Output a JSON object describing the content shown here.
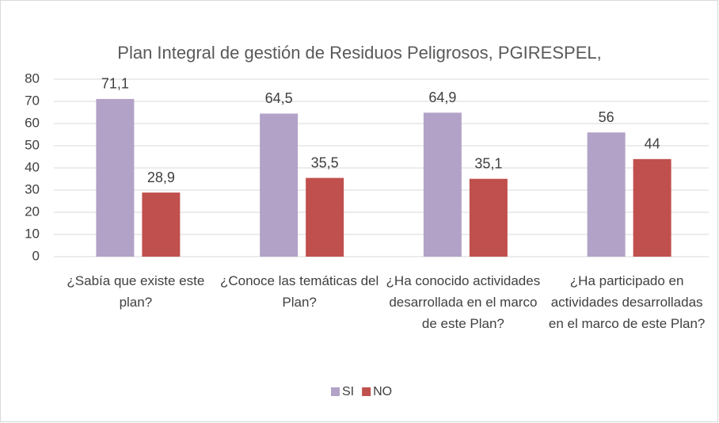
{
  "chart_data": {
    "type": "bar",
    "title": "Plan Integral de gestión de Residuos Peligrosos, PGIRESPEL,",
    "categories": [
      "¿Sabía que existe este plan?",
      "¿Conoce las temáticas del Plan?",
      "¿Ha conocido actividades desarrollada en el marco de este Plan?",
      "¿Ha participado en actividades desarrolladas en el marco de este Plan?"
    ],
    "series": [
      {
        "name": "SI",
        "color": "#b3a2c7",
        "values": [
          71.1,
          64.5,
          64.9,
          56
        ],
        "value_labels": [
          "71,1",
          "64,5",
          "64,9",
          "56"
        ]
      },
      {
        "name": "NO",
        "color": "#c0504d",
        "values": [
          28.9,
          35.5,
          35.1,
          44
        ],
        "value_labels": [
          "28,9",
          "35,5",
          "35,1",
          "44"
        ]
      }
    ],
    "ylim": [
      0,
      80
    ],
    "yticks": [
      0,
      10,
      20,
      30,
      40,
      50,
      60,
      70,
      80
    ],
    "grid": true,
    "legend": "bottom"
  }
}
